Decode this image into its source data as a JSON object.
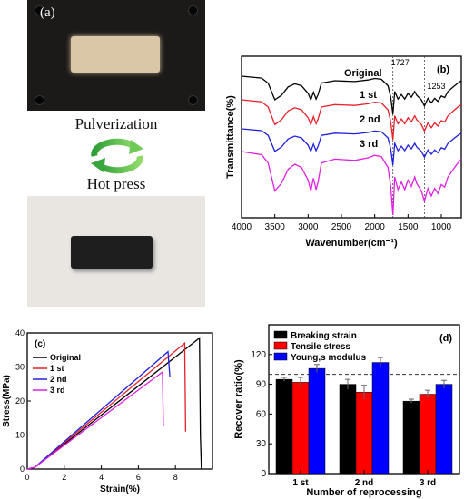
{
  "panel_a": {
    "label": "(a)",
    "step_top": "Pulverization",
    "step_bottom": "Hot press"
  },
  "chart_data": [
    {
      "id": "b",
      "panel_label": "(b)",
      "type": "line",
      "xlabel": "Wavenumber(cm⁻¹)",
      "ylabel": "Transmittance(%)",
      "xlim": [
        4000,
        700
      ],
      "x_ticks": [
        4000,
        3500,
        3000,
        2500,
        2000,
        1500,
        1000
      ],
      "annotations": [
        "1727",
        "1253"
      ],
      "annotation_x": [
        1727,
        1253
      ],
      "series": [
        {
          "name": "Original",
          "color": "#000000",
          "offset": 0
        },
        {
          "name": "1 st",
          "color": "#e8202a",
          "offset": 1
        },
        {
          "name": "2 nd",
          "color": "#1f1fe0",
          "offset": 2
        },
        {
          "name": "3 rd",
          "color": "#e020e0",
          "offset": 3
        }
      ],
      "x": [
        4000,
        3700,
        3600,
        3500,
        3400,
        3300,
        3200,
        3100,
        3000,
        2960,
        2920,
        2880,
        2850,
        2800,
        2600,
        2300,
        2100,
        2000,
        1900,
        1800,
        1760,
        1727,
        1700,
        1650,
        1600,
        1550,
        1500,
        1450,
        1400,
        1370,
        1300,
        1253,
        1200,
        1150,
        1100,
        1050,
        1000,
        950,
        900,
        800,
        750,
        700
      ],
      "profile": [
        0.0,
        0.05,
        0.18,
        0.62,
        0.5,
        0.28,
        0.2,
        0.25,
        0.45,
        0.62,
        0.42,
        0.6,
        0.48,
        0.18,
        0.12,
        0.14,
        0.1,
        0.06,
        0.08,
        0.25,
        0.55,
        1.0,
        0.4,
        0.6,
        0.48,
        0.6,
        0.45,
        0.55,
        0.4,
        0.5,
        0.62,
        0.78,
        0.58,
        0.7,
        0.58,
        0.66,
        0.52,
        0.56,
        0.4,
        0.25,
        0.18,
        0.12
      ]
    },
    {
      "id": "c",
      "panel_label": "(c)",
      "type": "line",
      "xlabel": "Strain(%)",
      "ylabel": "Stress(MPa)",
      "xlim": [
        0,
        10
      ],
      "ylim": [
        0,
        40
      ],
      "x_ticks": [
        0,
        2,
        4,
        6,
        8
      ],
      "y_ticks": [
        0,
        10,
        20,
        30,
        40
      ],
      "series": [
        {
          "name": "Original",
          "color": "#000000",
          "x": [
            0,
            0.4,
            9.3,
            9.35,
            9.4
          ],
          "y": [
            0,
            0.5,
            38.5,
            10,
            0
          ]
        },
        {
          "name": "1 st",
          "color": "#e8202a",
          "x": [
            0,
            0.4,
            8.5,
            8.55
          ],
          "y": [
            0,
            0.5,
            37,
            11
          ]
        },
        {
          "name": "2 nd",
          "color": "#1f1fe0",
          "x": [
            0,
            0.4,
            7.6,
            7.7
          ],
          "y": [
            0,
            0.5,
            34.5,
            27
          ]
        },
        {
          "name": "3 rd",
          "color": "#e020e0",
          "x": [
            0,
            0.4,
            7.3,
            7.35
          ],
          "y": [
            0,
            0.5,
            28.5,
            12.5
          ]
        }
      ]
    },
    {
      "id": "d",
      "panel_label": "(d)",
      "type": "bar",
      "xlabel": "Number of reprocessing",
      "ylabel": "Recover ratio(%)",
      "ylim": [
        0,
        150
      ],
      "y_ticks": [
        0,
        30,
        60,
        90,
        120
      ],
      "categories": [
        "1 st",
        "2 nd",
        "3 rd"
      ],
      "reference_line": 100,
      "series": [
        {
          "name": "Breaking strain",
          "color": "#000000",
          "values": [
            95,
            90,
            73
          ],
          "errors": [
            2,
            5,
            2
          ]
        },
        {
          "name": "Tensile stress",
          "color": "#ff0000",
          "values": [
            92,
            82,
            80
          ],
          "errors": [
            5,
            7,
            4
          ]
        },
        {
          "name": "Young,s modulus",
          "color": "#0000ff",
          "values": [
            106,
            112,
            90
          ],
          "errors": [
            4,
            5,
            4
          ]
        }
      ]
    }
  ]
}
